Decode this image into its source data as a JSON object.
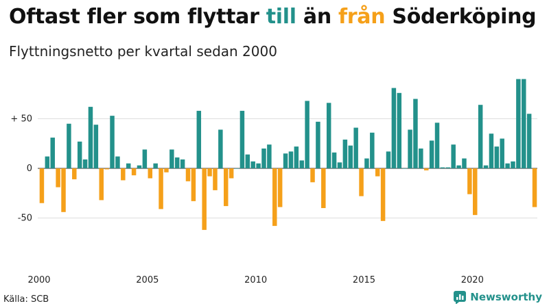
{
  "title": {
    "part1": "Oftast fler som flyttar ",
    "part2": "till",
    "part3": " än ",
    "part4": "från",
    "part5": " Söderköping"
  },
  "subtitle": "Flyttningsnetto per kvartal sedan 2000",
  "source": "Källa: SCB",
  "brand": {
    "name": "Newsworthy",
    "icon": "newsworthy-logo-icon"
  },
  "colors": {
    "positive": "#23918b",
    "negative": "#f5a01a",
    "grid": "#dddddd",
    "zero_line": "#333333"
  },
  "chart_data": {
    "type": "bar",
    "title": "Oftast fler som flyttar till än från Söderköping",
    "subtitle": "Flyttningsnetto per kvartal sedan 2000",
    "x_start": "2000 Q1",
    "x_ticks": [
      "2000",
      "2005",
      "2010",
      "2015",
      "2020"
    ],
    "y_ticks": [
      {
        "value": 50,
        "label": "+ 50"
      },
      {
        "value": 0,
        "label": "0"
      },
      {
        "value": -50,
        "label": "-50"
      }
    ],
    "ylim": [
      -95,
      95
    ],
    "grid": "horizontal",
    "series": [
      {
        "values": [
          -35,
          12,
          31,
          -19,
          -44,
          45,
          -11,
          27,
          9,
          62,
          44,
          -32,
          -1,
          53,
          12,
          -12,
          5,
          -7,
          3,
          19,
          -10,
          5,
          -41,
          -4,
          19,
          11,
          9,
          -13,
          -33,
          58,
          -62,
          -8,
          -22,
          39,
          -38,
          -10,
          0,
          58,
          14,
          7,
          5,
          20,
          24,
          -58,
          -39,
          15,
          17,
          22,
          8,
          68,
          -14,
          47,
          -40,
          66,
          16,
          6,
          29,
          23,
          41,
          -28,
          10,
          36,
          -8,
          -53,
          17,
          81,
          76,
          0,
          39,
          70,
          20,
          -2,
          28,
          46,
          1,
          1,
          24,
          3,
          10,
          -26,
          -47,
          64,
          3,
          35,
          22,
          30,
          5,
          7,
          90,
          90,
          55,
          -39
        ]
      }
    ]
  }
}
